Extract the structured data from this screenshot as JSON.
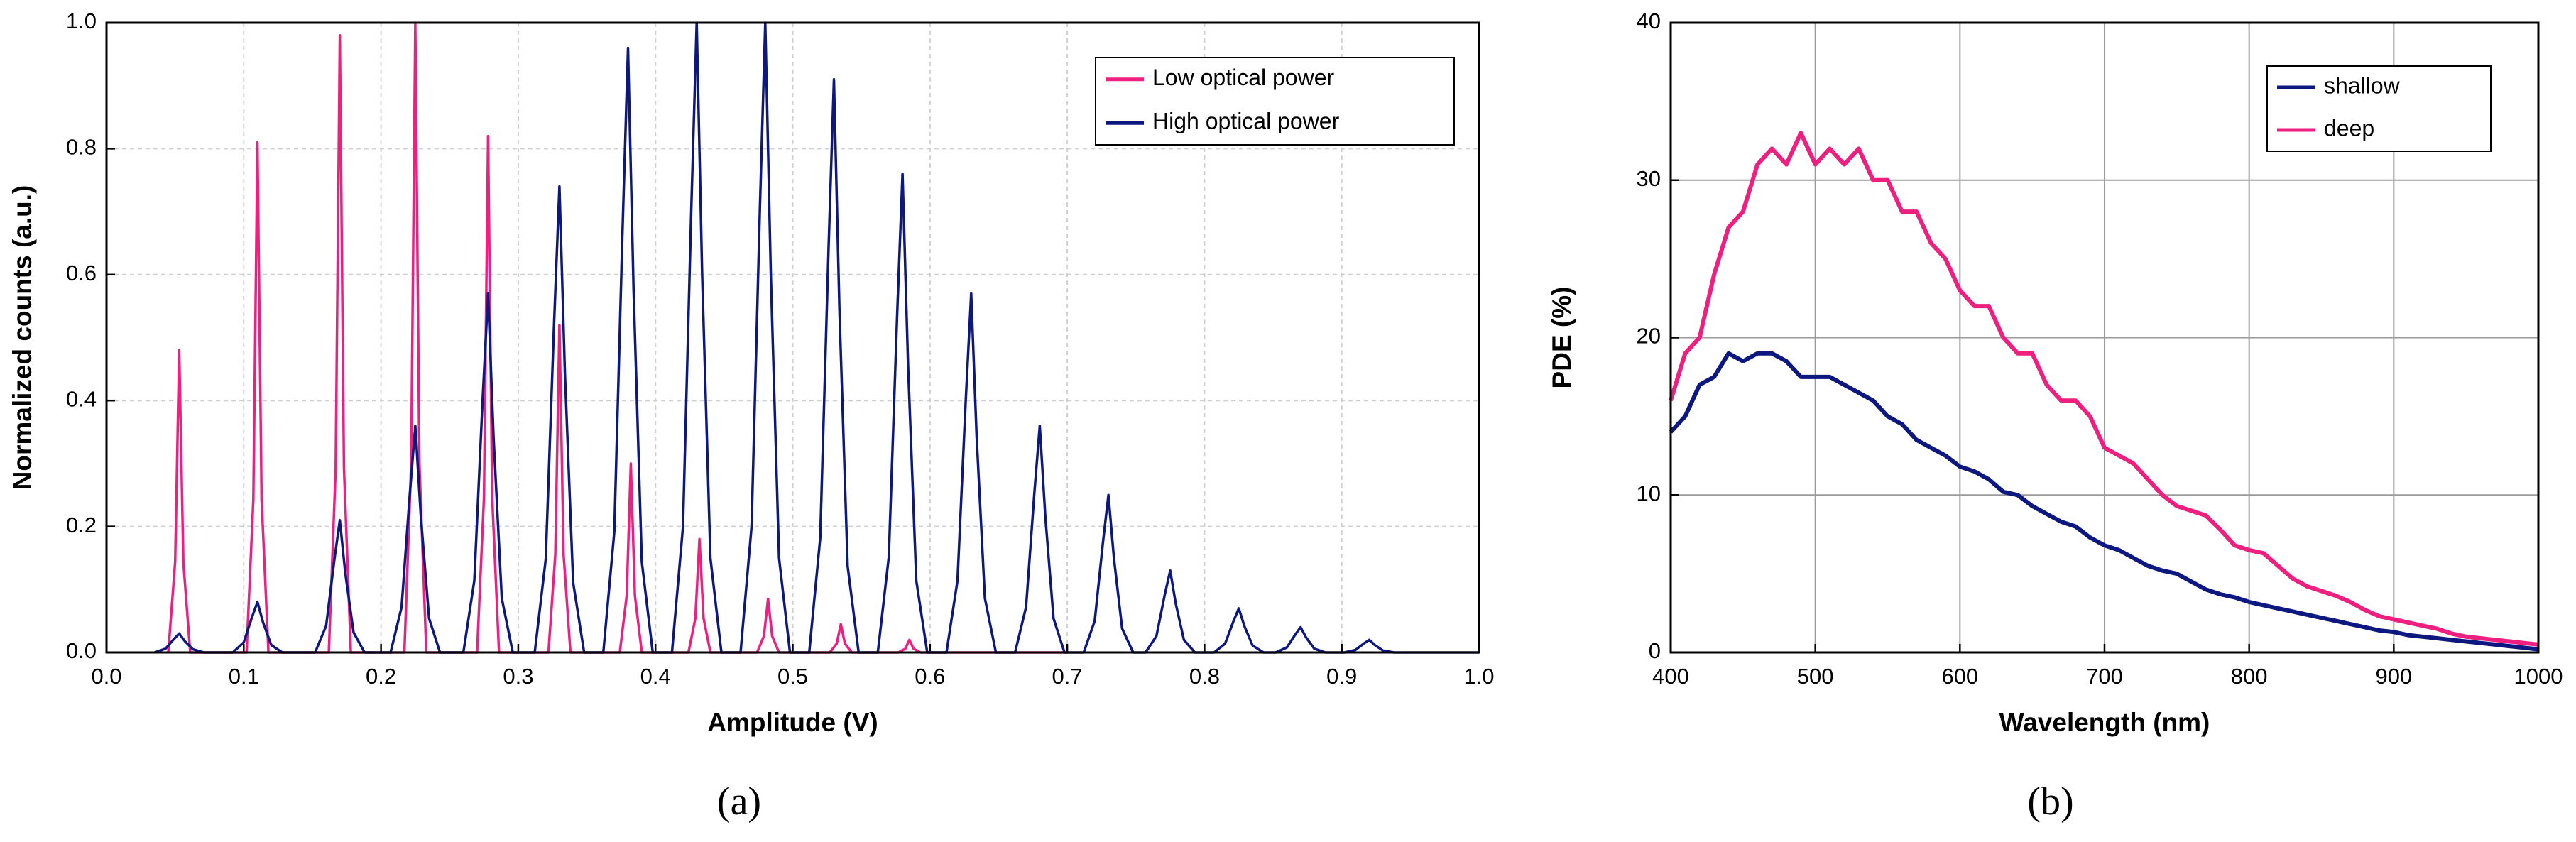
{
  "chart_data": [
    {
      "type": "line",
      "caption": "(a)",
      "xlabel": "Amplitude (V)",
      "ylabel": "Normalized counts (a.u.)",
      "xlim": [
        0,
        1
      ],
      "ylim": [
        0,
        1
      ],
      "xticks": [
        {
          "value": 0,
          "label": "0.0"
        },
        0.1,
        0.2,
        0.3,
        0.4,
        0.5,
        0.6,
        0.7,
        0.8,
        0.9,
        {
          "value": 1,
          "label": "1.0"
        }
      ],
      "yticks": [
        {
          "value": 0,
          "label": "0.0"
        },
        0.2,
        0.4,
        0.6,
        0.8,
        {
          "value": 1,
          "label": "1.0"
        }
      ],
      "grid": "dashed",
      "legend": "upper right",
      "series": [
        {
          "name": "Low optical power",
          "color": "#ee1f7f",
          "x": [
            0.045,
            0.05,
            0.053,
            0.056,
            0.061,
            0.102,
            0.107,
            0.11,
            0.113,
            0.118,
            0.162,
            0.167,
            0.17,
            0.173,
            0.178,
            0.217,
            0.222,
            0.225,
            0.228,
            0.233,
            0.27,
            0.275,
            0.278,
            0.281,
            0.286,
            0.322,
            0.327,
            0.33,
            0.333,
            0.338,
            0.374,
            0.379,
            0.382,
            0.385,
            0.39,
            0.424,
            0.429,
            0.432,
            0.435,
            0.44,
            0.474,
            0.479,
            0.482,
            0.485,
            0.49,
            0.527,
            0.532,
            0.535,
            0.538,
            0.543,
            0.577,
            0.582,
            0.585,
            0.588,
            0.593,
            0.7
          ],
          "values": [
            0,
            0.144,
            0.48,
            0.144,
            0,
            0,
            0.243,
            0.81,
            0.243,
            0,
            0,
            0.294,
            0.98,
            0.294,
            0,
            0,
            0.3,
            1,
            0.3,
            0,
            0,
            0.246,
            0.82,
            0.246,
            0,
            0,
            0.156,
            0.52,
            0.156,
            0,
            0,
            0.09,
            0.3,
            0.09,
            0,
            0,
            0.054,
            0.18,
            0.054,
            0,
            0,
            0.026,
            0.085,
            0.026,
            0,
            0,
            0.014,
            0.045,
            0.014,
            0,
            0,
            0.006,
            0.02,
            0.006,
            0,
            0
          ]
        },
        {
          "name": "High optical power",
          "color": "#0d1780",
          "x": [
            0.035,
            0.043,
            0.049,
            0.053,
            0.057,
            0.063,
            0.071,
            0.092,
            0.1,
            0.106,
            0.11,
            0.114,
            0.12,
            0.128,
            0.152,
            0.16,
            0.166,
            0.17,
            0.174,
            0.18,
            0.188,
            0.207,
            0.215,
            0.221,
            0.225,
            0.229,
            0.235,
            0.243,
            0.26,
            0.268,
            0.274,
            0.278,
            0.282,
            0.288,
            0.296,
            0.312,
            0.32,
            0.326,
            0.33,
            0.334,
            0.34,
            0.348,
            0.362,
            0.37,
            0.376,
            0.38,
            0.384,
            0.39,
            0.398,
            0.412,
            0.42,
            0.426,
            0.43,
            0.434,
            0.44,
            0.448,
            0.462,
            0.47,
            0.476,
            0.48,
            0.484,
            0.49,
            0.498,
            0.512,
            0.52,
            0.526,
            0.53,
            0.534,
            0.54,
            0.548,
            0.562,
            0.57,
            0.576,
            0.58,
            0.584,
            0.59,
            0.598,
            0.612,
            0.62,
            0.626,
            0.63,
            0.634,
            0.64,
            0.648,
            0.662,
            0.67,
            0.676,
            0.68,
            0.684,
            0.69,
            0.698,
            0.712,
            0.72,
            0.726,
            0.73,
            0.734,
            0.74,
            0.748,
            0.757,
            0.765,
            0.771,
            0.775,
            0.779,
            0.785,
            0.793,
            0.807,
            0.815,
            0.821,
            0.825,
            0.829,
            0.835,
            0.843,
            0.852,
            0.86,
            0.866,
            0.87,
            0.874,
            0.88,
            0.888,
            0.902,
            0.91,
            0.916,
            0.92,
            0.924,
            0.93,
            0.938,
            1.0
          ],
          "values": [
            0,
            0.006,
            0.021,
            0.03,
            0.018,
            0.005,
            0,
            0,
            0.016,
            0.056,
            0.08,
            0.048,
            0.012,
            0,
            0,
            0.042,
            0.147,
            0.21,
            0.126,
            0.032,
            0,
            0,
            0.072,
            0.252,
            0.36,
            0.216,
            0.054,
            0,
            0,
            0.114,
            0.399,
            0.57,
            0.342,
            0.086,
            0,
            0,
            0.148,
            0.518,
            0.74,
            0.444,
            0.111,
            0,
            0,
            0.192,
            0.672,
            0.96,
            0.576,
            0.144,
            0,
            0,
            0.2,
            0.7,
            1,
            0.6,
            0.15,
            0,
            0,
            0.2,
            0.7,
            1,
            0.6,
            0.15,
            0,
            0,
            0.182,
            0.637,
            0.91,
            0.546,
            0.137,
            0,
            0,
            0.152,
            0.532,
            0.76,
            0.456,
            0.114,
            0,
            0,
            0.114,
            0.399,
            0.57,
            0.342,
            0.086,
            0,
            0,
            0.072,
            0.252,
            0.36,
            0.216,
            0.054,
            0,
            0,
            0.05,
            0.175,
            0.25,
            0.15,
            0.038,
            0,
            0,
            0.026,
            0.091,
            0.13,
            0.078,
            0.02,
            0,
            0,
            0.014,
            0.049,
            0.07,
            0.042,
            0.011,
            0,
            0,
            0.008,
            0.028,
            0.04,
            0.024,
            0.006,
            0,
            0,
            0.004,
            0.014,
            0.02,
            0.012,
            0.003,
            0,
            0
          ]
        }
      ]
    },
    {
      "type": "line",
      "caption": "(b)",
      "xlabel": "Wavelength (nm)",
      "ylabel": "PDE (%)",
      "xlim": [
        400,
        1000
      ],
      "ylim": [
        0,
        40
      ],
      "xticks": [
        400,
        500,
        600,
        700,
        800,
        900,
        1000
      ],
      "yticks": [
        0,
        10,
        20,
        30,
        40
      ],
      "grid": "solid",
      "legend": "upper right",
      "series": [
        {
          "name": "shallow",
          "color": "#0d1780",
          "x": [
            400,
            410,
            420,
            430,
            440,
            450,
            460,
            470,
            480,
            490,
            500,
            510,
            520,
            530,
            540,
            550,
            560,
            570,
            580,
            590,
            600,
            610,
            620,
            630,
            640,
            650,
            660,
            670,
            680,
            690,
            700,
            710,
            720,
            730,
            740,
            750,
            760,
            770,
            780,
            790,
            800,
            810,
            820,
            830,
            840,
            850,
            860,
            870,
            880,
            890,
            900,
            910,
            920,
            930,
            940,
            950,
            960,
            970,
            980,
            990,
            1000
          ],
          "values": [
            14,
            15,
            17,
            17.5,
            19,
            18.5,
            19,
            19,
            18.5,
            17.5,
            17.5,
            17.5,
            17,
            16.5,
            16,
            15,
            14.5,
            13.5,
            13,
            12.5,
            11.8,
            11.5,
            11,
            10.2,
            10,
            9.3,
            8.8,
            8.3,
            8,
            7.3,
            6.8,
            6.5,
            6,
            5.5,
            5.2,
            5,
            4.5,
            4,
            3.7,
            3.5,
            3.2,
            3,
            2.8,
            2.6,
            2.4,
            2.2,
            2,
            1.8,
            1.6,
            1.4,
            1.3,
            1.1,
            1,
            0.9,
            0.8,
            0.7,
            0.6,
            0.5,
            0.4,
            0.3,
            0.2
          ]
        },
        {
          "name": "deep",
          "color": "#ee1f7f",
          "x": [
            400,
            410,
            420,
            430,
            440,
            450,
            460,
            470,
            480,
            490,
            500,
            510,
            520,
            530,
            540,
            550,
            560,
            570,
            580,
            590,
            600,
            610,
            620,
            630,
            640,
            650,
            660,
            670,
            680,
            690,
            700,
            710,
            720,
            730,
            740,
            750,
            760,
            770,
            780,
            790,
            800,
            810,
            820,
            830,
            840,
            850,
            860,
            870,
            880,
            890,
            900,
            910,
            920,
            930,
            940,
            950,
            960,
            970,
            980,
            990,
            1000
          ],
          "values": [
            16,
            19,
            20,
            24,
            27,
            28,
            31,
            32,
            31,
            33,
            31,
            32,
            31,
            32,
            30,
            30,
            28,
            28,
            26,
            25,
            23,
            22,
            22,
            20,
            19,
            19,
            17,
            16,
            16,
            15,
            13,
            12.5,
            12,
            11,
            10,
            9.3,
            9,
            8.7,
            7.8,
            6.8,
            6.5,
            6.3,
            5.5,
            4.7,
            4.2,
            3.9,
            3.6,
            3.2,
            2.7,
            2.3,
            2.1,
            1.9,
            1.7,
            1.5,
            1.2,
            1.0,
            0.9,
            0.8,
            0.7,
            0.6,
            0.5
          ]
        }
      ]
    }
  ]
}
